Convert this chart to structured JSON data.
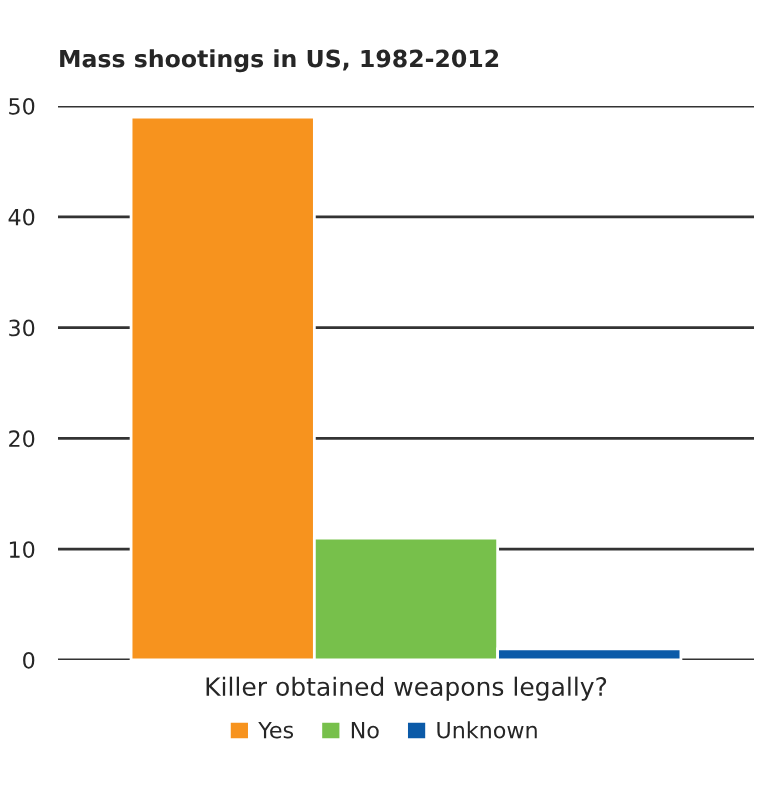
{
  "chart_data": {
    "type": "bar",
    "title": "Mass shootings in US, 1982-2012",
    "categories": [
      "Killer obtained weapons legally?"
    ],
    "series": [
      {
        "name": "Yes",
        "color": "#f7931e",
        "values": [
          49
        ]
      },
      {
        "name": "No",
        "color": "#77c04b",
        "values": [
          11
        ]
      },
      {
        "name": "Unknown",
        "color": "#0b5aa8",
        "values": [
          1
        ]
      }
    ],
    "ylim": [
      0,
      50
    ],
    "yticks": [
      0,
      10,
      20,
      30,
      40,
      50
    ],
    "grid": "y",
    "legend": "bottom"
  }
}
